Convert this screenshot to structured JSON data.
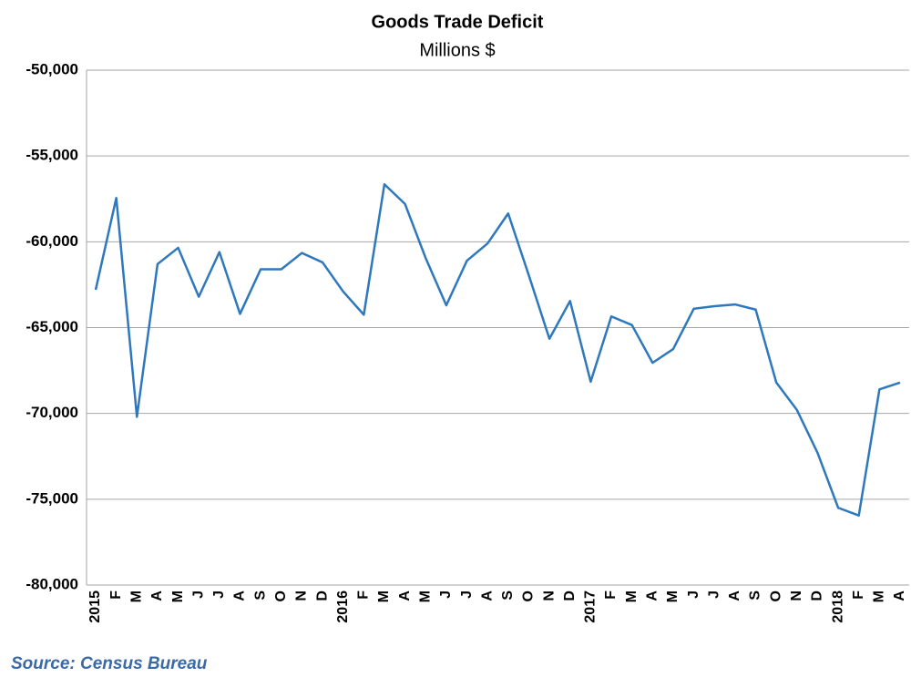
{
  "chart_data": {
    "type": "line",
    "title": "Goods Trade Deficit",
    "subtitle": "Millions $",
    "source": "Source: Census Bureau",
    "categories": [
      "2015",
      "F",
      "M",
      "A",
      "M",
      "J",
      "J",
      "A",
      "S",
      "O",
      "N",
      "D",
      "2016",
      "F",
      "M",
      "A",
      "M",
      "J",
      "J",
      "A",
      "S",
      "O",
      "N",
      "D",
      "2017",
      "F",
      "M",
      "A",
      "M",
      "J",
      "J",
      "A",
      "S",
      "O",
      "N",
      "D",
      "2018",
      "F",
      "M",
      "A"
    ],
    "series": [
      {
        "name": "Goods Trade Deficit",
        "color": "#2e78bd",
        "values": [
          -62800,
          -57450,
          -70200,
          -61300,
          -60350,
          -63200,
          -60600,
          -64200,
          -61600,
          -61600,
          -60650,
          -61200,
          -62900,
          -64250,
          -56650,
          -57800,
          -60950,
          -63700,
          -61100,
          -60100,
          -58350,
          -61950,
          -65650,
          -63450,
          -68150,
          -64350,
          -64850,
          -67050,
          -66250,
          -63900,
          -63750,
          -63650,
          -63950,
          -68200,
          -69800,
          -72300,
          -75500,
          -75950,
          -68600,
          -68200
        ]
      }
    ],
    "ylim": [
      -80000,
      -50000
    ],
    "yticks": [
      {
        "value": -80000,
        "label": "-80,000"
      },
      {
        "value": -75000,
        "label": "-75,000"
      },
      {
        "value": -70000,
        "label": "-70,000"
      },
      {
        "value": -65000,
        "label": "-65,000"
      },
      {
        "value": -60000,
        "label": "-60,000"
      },
      {
        "value": -55000,
        "label": "-55,000"
      },
      {
        "value": -50000,
        "label": "-50,000"
      }
    ],
    "grid": true
  }
}
